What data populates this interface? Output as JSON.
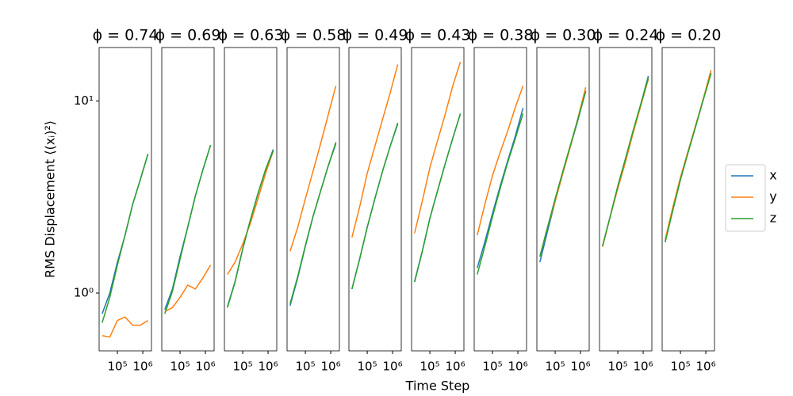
{
  "chart_data": [
    {
      "type": "line",
      "title": "ϕ = 0.74",
      "y_label": "RMS Displacement ⟨(xᵢ)²⟩",
      "xscale": "log",
      "yscale": "log",
      "xlim": [
        19000,
        2200000
      ],
      "ylim": [
        0.5,
        19
      ],
      "xticks": [
        {
          "value": 100000,
          "label": "10⁵"
        },
        {
          "value": 1000000,
          "label": "10⁶"
        }
      ],
      "yticks": [
        {
          "value": 1,
          "label": "10⁰"
        },
        {
          "value": 10,
          "label": "10¹"
        }
      ],
      "legend": "right",
      "x": [
        25000,
        50000,
        100000,
        200000,
        400000,
        800000,
        1600000
      ],
      "series": [
        {
          "name": "x",
          "color": "#1f77b4",
          "values": [
            0.78,
            1.0,
            1.45,
            2.0,
            2.9,
            3.9,
            5.3
          ]
        },
        {
          "name": "y",
          "color": "#ff7f0e",
          "values": [
            0.6,
            0.59,
            0.72,
            0.75,
            0.68,
            0.68,
            0.72
          ]
        },
        {
          "name": "z",
          "color": "#2ca02c",
          "values": [
            0.7,
            0.95,
            1.4,
            2.0,
            2.9,
            3.9,
            5.3
          ]
        }
      ]
    },
    {
      "type": "line",
      "title": "ϕ = 0.69",
      "xscale": "log",
      "yscale": "log",
      "xlim": [
        19000,
        2200000
      ],
      "ylim": [
        0.5,
        19
      ],
      "xticks": [
        {
          "value": 100000,
          "label": "10⁵"
        },
        {
          "value": 1000000,
          "label": "10⁶"
        }
      ],
      "x": [
        25000,
        50000,
        100000,
        200000,
        400000,
        800000,
        1600000
      ],
      "series": [
        {
          "color": "#1f77b4",
          "values": [
            0.82,
            1.05,
            1.55,
            2.2,
            3.2,
            4.4,
            5.9
          ]
        },
        {
          "color": "#ff7f0e",
          "values": [
            0.8,
            0.84,
            0.95,
            1.1,
            1.05,
            1.2,
            1.4
          ]
        },
        {
          "color": "#2ca02c",
          "values": [
            0.78,
            1.02,
            1.5,
            2.2,
            3.2,
            4.4,
            5.9
          ]
        }
      ]
    },
    {
      "type": "line",
      "title": "ϕ = 0.63",
      "xscale": "log",
      "yscale": "log",
      "xlim": [
        19000,
        2200000
      ],
      "ylim": [
        0.5,
        19
      ],
      "xticks": [
        {
          "value": 100000,
          "label": "10⁵"
        },
        {
          "value": 1000000,
          "label": "10⁶"
        }
      ],
      "x": [
        25000,
        50000,
        100000,
        200000,
        400000,
        800000,
        1600000
      ],
      "series": [
        {
          "color": "#1f77b4",
          "values": [
            0.85,
            1.15,
            1.7,
            2.4,
            3.3,
            4.4,
            5.6
          ]
        },
        {
          "color": "#ff7f0e",
          "values": [
            1.25,
            1.45,
            1.8,
            2.3,
            3.1,
            4.2,
            5.5
          ]
        },
        {
          "color": "#2ca02c",
          "values": [
            0.84,
            1.14,
            1.7,
            2.4,
            3.3,
            4.4,
            5.5
          ]
        }
      ]
    },
    {
      "type": "line",
      "title": "ϕ = 0.58",
      "xscale": "log",
      "yscale": "log",
      "xlim": [
        19000,
        2200000
      ],
      "ylim": [
        0.5,
        19
      ],
      "xticks": [
        {
          "value": 100000,
          "label": "10⁵"
        },
        {
          "value": 1000000,
          "label": "10⁶"
        }
      ],
      "x": [
        25000,
        50000,
        100000,
        200000,
        400000,
        800000,
        1600000
      ],
      "series": [
        {
          "color": "#1f77b4",
          "values": [
            0.86,
            1.2,
            1.75,
            2.5,
            3.4,
            4.6,
            6.0
          ]
        },
        {
          "color": "#ff7f0e",
          "values": [
            1.65,
            2.2,
            3.1,
            4.3,
            6.0,
            8.5,
            12
          ]
        },
        {
          "color": "#2ca02c",
          "values": [
            0.88,
            1.22,
            1.77,
            2.5,
            3.4,
            4.6,
            6.1
          ]
        }
      ]
    },
    {
      "type": "line",
      "title": "ϕ = 0.49",
      "xscale": "log",
      "yscale": "log",
      "xlim": [
        19000,
        2200000
      ],
      "ylim": [
        0.5,
        19
      ],
      "xticks": [
        {
          "value": 100000,
          "label": "10⁵"
        },
        {
          "value": 1000000,
          "label": "10⁶"
        }
      ],
      "x": [
        25000,
        50000,
        100000,
        200000,
        400000,
        800000,
        1600000
      ],
      "series": [
        {
          "color": "#1f77b4",
          "values": [
            1.05,
            1.5,
            2.2,
            3.1,
            4.3,
            5.8,
            7.6
          ]
        },
        {
          "color": "#ff7f0e",
          "values": [
            1.95,
            2.8,
            4.2,
            5.8,
            8.0,
            11,
            15.5
          ]
        },
        {
          "color": "#2ca02c",
          "values": [
            1.05,
            1.5,
            2.2,
            3.1,
            4.3,
            5.8,
            7.7
          ]
        }
      ]
    },
    {
      "type": "line",
      "title": "ϕ = 0.43",
      "x_label": "Time Step",
      "xscale": "log",
      "yscale": "log",
      "xlim": [
        19000,
        2200000
      ],
      "ylim": [
        0.5,
        19
      ],
      "xticks": [
        {
          "value": 100000,
          "label": "10⁵"
        },
        {
          "value": 1000000,
          "label": "10⁶"
        }
      ],
      "x": [
        25000,
        50000,
        100000,
        200000,
        400000,
        800000,
        1600000
      ],
      "series": [
        {
          "color": "#1f77b4",
          "values": [
            1.15,
            1.65,
            2.45,
            3.4,
            4.7,
            6.4,
            8.6
          ]
        },
        {
          "color": "#ff7f0e",
          "values": [
            2.05,
            3.0,
            4.5,
            6.2,
            8.5,
            12,
            16
          ]
        },
        {
          "color": "#2ca02c",
          "values": [
            1.14,
            1.64,
            2.45,
            3.4,
            4.7,
            6.4,
            8.6
          ]
        }
      ]
    },
    {
      "type": "line",
      "title": "ϕ = 0.38",
      "xscale": "log",
      "yscale": "log",
      "xlim": [
        19000,
        2200000
      ],
      "ylim": [
        0.5,
        19
      ],
      "xticks": [
        {
          "value": 100000,
          "label": "10⁵"
        },
        {
          "value": 1000000,
          "label": "10⁶"
        }
      ],
      "x": [
        25000,
        50000,
        100000,
        200000,
        400000,
        800000,
        1600000
      ],
      "series": [
        {
          "color": "#1f77b4",
          "values": [
            1.35,
            1.85,
            2.6,
            3.6,
            4.9,
            6.6,
            9.2
          ]
        },
        {
          "color": "#ff7f0e",
          "values": [
            2.0,
            2.9,
            4.1,
            5.4,
            7.0,
            9.3,
            12
          ]
        },
        {
          "color": "#2ca02c",
          "values": [
            1.25,
            1.75,
            2.5,
            3.5,
            4.8,
            6.4,
            8.6
          ]
        }
      ]
    },
    {
      "type": "line",
      "title": "ϕ = 0.30",
      "xscale": "log",
      "yscale": "log",
      "xlim": [
        19000,
        2200000
      ],
      "ylim": [
        0.5,
        19
      ],
      "xticks": [
        {
          "value": 100000,
          "label": "10⁵"
        },
        {
          "value": 1000000,
          "label": "10⁶"
        }
      ],
      "x": [
        25000,
        50000,
        100000,
        200000,
        400000,
        800000,
        1600000
      ],
      "series": [
        {
          "color": "#1f77b4",
          "values": [
            1.45,
            2.1,
            3.0,
            4.2,
            5.8,
            8.0,
            11.3
          ]
        },
        {
          "color": "#ff7f0e",
          "values": [
            1.55,
            2.2,
            3.0,
            4.2,
            5.8,
            8.2,
            11.8
          ]
        },
        {
          "color": "#2ca02c",
          "values": [
            1.55,
            2.2,
            3.1,
            4.3,
            5.9,
            8.1,
            11.2
          ]
        }
      ]
    },
    {
      "type": "line",
      "title": "ϕ = 0.24",
      "xscale": "log",
      "yscale": "log",
      "xlim": [
        19000,
        2200000
      ],
      "ylim": [
        0.5,
        19
      ],
      "xticks": [
        {
          "value": 100000,
          "label": "10⁵"
        },
        {
          "value": 1000000,
          "label": "10⁶"
        }
      ],
      "x": [
        25000,
        50000,
        100000,
        200000,
        400000,
        800000,
        1600000
      ],
      "series": [
        {
          "color": "#1f77b4",
          "values": [
            1.75,
            2.5,
            3.6,
            5.0,
            6.9,
            9.6,
            13.5
          ]
        },
        {
          "color": "#ff7f0e",
          "values": [
            1.74,
            2.5,
            3.5,
            4.8,
            6.8,
            9.4,
            13
          ]
        },
        {
          "color": "#2ca02c",
          "values": [
            1.76,
            2.5,
            3.6,
            5.0,
            7.0,
            9.6,
            13.2
          ]
        }
      ]
    },
    {
      "type": "line",
      "title": "ϕ = 0.20",
      "xscale": "log",
      "yscale": "log",
      "xlim": [
        19000,
        2200000
      ],
      "ylim": [
        0.5,
        19
      ],
      "xticks": [
        {
          "value": 100000,
          "label": "10⁵"
        },
        {
          "value": 1000000,
          "label": "10⁶"
        }
      ],
      "x": [
        25000,
        50000,
        100000,
        200000,
        400000,
        800000,
        1600000
      ],
      "series": [
        {
          "color": "#1f77b4",
          "values": [
            1.85,
            2.7,
            3.9,
            5.4,
            7.4,
            10.2,
            14
          ]
        },
        {
          "color": "#ff7f0e",
          "values": [
            1.9,
            2.8,
            4.0,
            5.5,
            7.5,
            10.3,
            14.5
          ]
        },
        {
          "color": "#2ca02c",
          "values": [
            1.84,
            2.7,
            3.9,
            5.4,
            7.4,
            10.2,
            13.9
          ]
        }
      ]
    }
  ]
}
